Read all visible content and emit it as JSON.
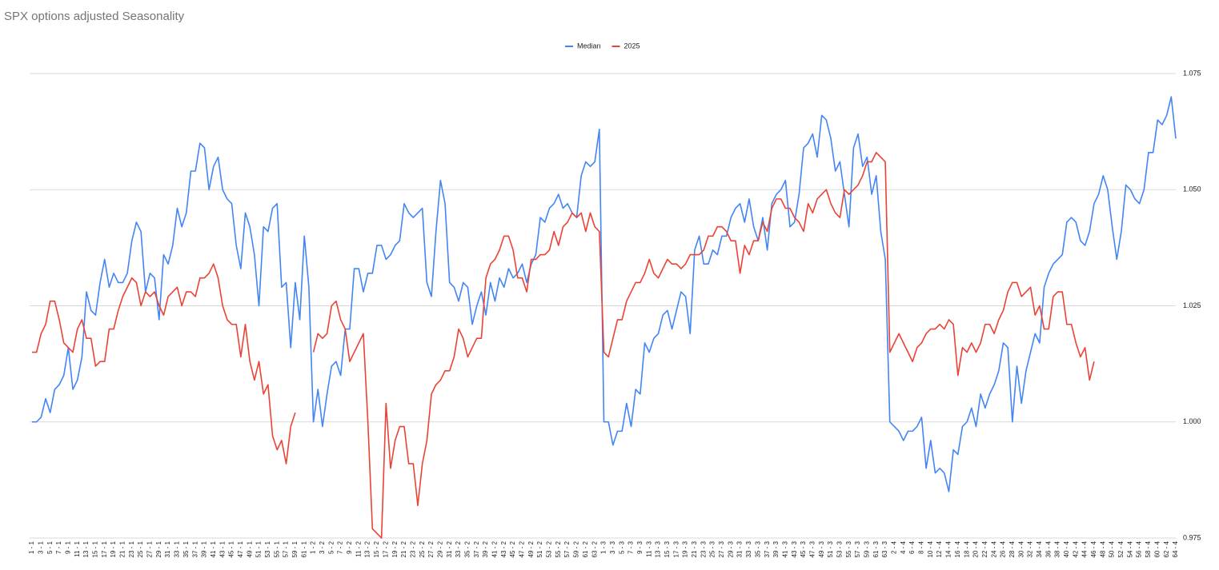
{
  "chart_data": {
    "type": "line",
    "title": "SPX options adjusted Seasonality",
    "categories": [
      "1 - 1",
      null,
      "3 - 1",
      null,
      "5 - 1",
      null,
      "7 - 1",
      null,
      "9 - 1",
      null,
      "11 - 1",
      null,
      "13 - 1",
      null,
      "15 - 1",
      null,
      "17 - 1",
      null,
      "19 - 1",
      null,
      "21 - 1",
      null,
      "23 - 1",
      null,
      "25 - 1",
      null,
      "27 - 1",
      null,
      "29 - 1",
      null,
      "31 - 1",
      null,
      "33 - 1",
      null,
      "35 - 1",
      null,
      "37 - 1",
      null,
      "39 - 1",
      null,
      "41 - 1",
      null,
      "43 - 1",
      null,
      "45 - 1",
      null,
      "47 - 1",
      null,
      "49 - 1",
      null,
      "51 - 1",
      null,
      "53 - 1",
      null,
      "55 - 1",
      null,
      "57 - 1",
      null,
      "59 - 1",
      null,
      "61 - 1",
      null,
      "1 - 2",
      null,
      "3 - 2",
      null,
      "5 - 2",
      null,
      "7 - 2",
      null,
      "9 - 2",
      null,
      "11 - 2",
      null,
      "13 - 2",
      null,
      "15 - 2",
      null,
      "17 - 2",
      null,
      "19 - 2",
      null,
      "21 - 2",
      null,
      "23 - 2",
      null,
      "25 - 2",
      null,
      "27 - 2",
      null,
      "29 - 2",
      null,
      "31 - 2",
      null,
      "33 - 2",
      null,
      "35 - 2",
      null,
      "37 - 2",
      null,
      "39 - 2",
      null,
      "41 - 2",
      null,
      "43 - 2",
      null,
      "45 - 2",
      null,
      "47 - 2",
      null,
      "49 - 2",
      null,
      "51 - 2",
      null,
      "53 - 2",
      null,
      "55 - 2",
      null,
      "57 - 2",
      null,
      "59 - 2",
      null,
      "61 - 2",
      null,
      "63 - 2",
      null,
      "1 - 3",
      null,
      "3 - 3",
      null,
      "5 - 3",
      null,
      "7 - 3",
      null,
      "9 - 3",
      null,
      "11 - 3",
      null,
      "13 - 3",
      null,
      "15 - 3",
      null,
      "17 - 3",
      null,
      "19 - 3",
      null,
      "21 - 3",
      null,
      "23 - 3",
      null,
      "25 - 3",
      null,
      "27 - 3",
      null,
      "29 - 3",
      null,
      "31 - 3",
      null,
      "33 - 3",
      null,
      "35 - 3",
      null,
      "37 - 3",
      null,
      "39 - 3",
      null,
      "41 - 3",
      null,
      "43 - 3",
      null,
      "45 - 3",
      null,
      "47 - 3",
      null,
      "49 - 3",
      null,
      "51 - 3",
      null,
      "53 - 3",
      null,
      "55 - 3",
      null,
      "57 - 3",
      null,
      "59 - 3",
      null,
      "61 - 3",
      null,
      "63 - 3",
      null,
      "2 - 4",
      null,
      "4 - 4",
      null,
      "6 - 4",
      null,
      "8 - 4",
      null,
      "10 - 4",
      null,
      "12 - 4",
      null,
      "14 - 4",
      null,
      "16 - 4",
      null,
      "18 - 4",
      null,
      "20 - 4",
      null,
      "22 - 4",
      null,
      "24 - 4",
      null,
      "26 - 4",
      null,
      "28 - 4",
      null,
      "30 - 4",
      null,
      "32 - 4",
      null,
      "34 - 4",
      null,
      "36 - 4",
      null,
      "38 - 4",
      null,
      "40 - 4",
      null,
      "42 - 4",
      null,
      "44 - 4",
      null,
      "46 - 4",
      null,
      "48 - 4",
      null,
      "50 - 4",
      null,
      "52 - 4",
      null,
      "54 - 4",
      null,
      "56 - 4",
      null,
      "58 - 4",
      null,
      "60 - 4",
      null,
      "62 - 4",
      null,
      "64 - 4"
    ],
    "series": [
      {
        "name": "Median",
        "color": "#4285f4",
        "values": [
          1.0,
          1.0,
          1.001,
          1.005,
          1.002,
          1.007,
          1.008,
          1.01,
          1.016,
          1.007,
          1.009,
          1.014,
          1.028,
          1.024,
          1.023,
          1.03,
          1.035,
          1.029,
          1.032,
          1.03,
          1.03,
          1.032,
          1.039,
          1.043,
          1.041,
          1.028,
          1.032,
          1.031,
          1.022,
          1.036,
          1.034,
          1.038,
          1.046,
          1.042,
          1.045,
          1.054,
          1.054,
          1.06,
          1.059,
          1.05,
          1.055,
          1.057,
          1.05,
          1.048,
          1.047,
          1.038,
          1.033,
          1.045,
          1.042,
          1.036,
          1.025,
          1.042,
          1.041,
          1.046,
          1.047,
          1.029,
          1.03,
          1.016,
          1.03,
          1.022,
          1.04,
          1.029,
          1.0,
          1.007,
          0.999,
          1.006,
          1.012,
          1.013,
          1.01,
          1.02,
          1.02,
          1.033,
          1.033,
          1.028,
          1.032,
          1.032,
          1.038,
          1.038,
          1.035,
          1.036,
          1.038,
          1.039,
          1.047,
          1.045,
          1.044,
          1.045,
          1.046,
          1.03,
          1.027,
          1.041,
          1.052,
          1.047,
          1.03,
          1.029,
          1.026,
          1.03,
          1.029,
          1.021,
          1.025,
          1.028,
          1.023,
          1.03,
          1.026,
          1.031,
          1.029,
          1.033,
          1.031,
          1.032,
          1.034,
          1.03,
          1.034,
          1.036,
          1.044,
          1.043,
          1.046,
          1.047,
          1.049,
          1.046,
          1.047,
          1.045,
          1.044,
          1.053,
          1.056,
          1.055,
          1.056,
          1.063,
          1.0,
          1.0,
          0.995,
          0.998,
          0.998,
          1.004,
          0.999,
          1.007,
          1.006,
          1.017,
          1.015,
          1.018,
          1.019,
          1.023,
          1.024,
          1.02,
          1.024,
          1.028,
          1.027,
          1.019,
          1.037,
          1.04,
          1.034,
          1.034,
          1.037,
          1.036,
          1.04,
          1.04,
          1.044,
          1.046,
          1.047,
          1.043,
          1.048,
          1.042,
          1.039,
          1.044,
          1.037,
          1.047,
          1.049,
          1.05,
          1.052,
          1.042,
          1.043,
          1.049,
          1.059,
          1.06,
          1.062,
          1.057,
          1.066,
          1.065,
          1.061,
          1.054,
          1.056,
          1.049,
          1.042,
          1.059,
          1.062,
          1.055,
          1.057,
          1.049,
          1.053,
          1.041,
          1.035,
          1.0,
          0.999,
          0.998,
          0.996,
          0.998,
          0.998,
          0.999,
          1.001,
          0.99,
          0.996,
          0.989,
          0.99,
          0.989,
          0.985,
          0.994,
          0.993,
          0.999,
          1.0,
          1.003,
          0.999,
          1.006,
          1.003,
          1.006,
          1.008,
          1.011,
          1.017,
          1.016,
          1.0,
          1.012,
          1.004,
          1.011,
          1.015,
          1.019,
          1.017,
          1.029,
          1.032,
          1.034,
          1.035,
          1.036,
          1.043,
          1.044,
          1.043,
          1.039,
          1.038,
          1.041,
          1.047,
          1.049,
          1.053,
          1.05,
          1.042,
          1.035,
          1.041,
          1.051,
          1.05,
          1.048,
          1.047,
          1.05,
          1.058,
          1.058,
          1.065,
          1.064,
          1.066,
          1.07,
          1.061
        ]
      },
      {
        "name": "2025",
        "color": "#ea4335",
        "values": [
          1.015,
          1.015,
          1.019,
          1.021,
          1.026,
          1.026,
          1.022,
          1.017,
          1.016,
          1.015,
          1.02,
          1.022,
          1.018,
          1.018,
          1.012,
          1.013,
          1.013,
          1.02,
          1.02,
          1.024,
          1.027,
          1.029,
          1.031,
          1.03,
          1.025,
          1.028,
          1.027,
          1.028,
          1.025,
          1.023,
          1.027,
          1.028,
          1.029,
          1.025,
          1.028,
          1.028,
          1.027,
          1.031,
          1.031,
          1.032,
          1.034,
          1.031,
          1.025,
          1.022,
          1.021,
          1.021,
          1.014,
          1.021,
          1.013,
          1.009,
          1.013,
          1.006,
          1.008,
          0.997,
          0.994,
          0.996,
          0.991,
          0.999,
          1.002,
          null,
          null,
          null,
          1.015,
          1.019,
          1.018,
          1.019,
          1.025,
          1.026,
          1.022,
          1.02,
          1.013,
          1.015,
          1.017,
          1.019,
          1.0,
          0.977,
          0.976,
          0.975,
          1.004,
          0.99,
          0.996,
          0.999,
          0.999,
          0.991,
          0.991,
          0.982,
          0.991,
          0.996,
          1.006,
          1.008,
          1.009,
          1.011,
          1.011,
          1.014,
          1.02,
          1.018,
          1.014,
          1.016,
          1.018,
          1.018,
          1.031,
          1.034,
          1.035,
          1.037,
          1.04,
          1.04,
          1.037,
          1.031,
          1.031,
          1.028,
          1.035,
          1.035,
          1.036,
          1.036,
          1.037,
          1.041,
          1.038,
          1.042,
          1.043,
          1.045,
          1.044,
          1.045,
          1.041,
          1.045,
          1.042,
          1.041,
          1.015,
          1.014,
          1.018,
          1.022,
          1.022,
          1.026,
          1.028,
          1.03,
          1.03,
          1.032,
          1.035,
          1.032,
          1.031,
          1.033,
          1.035,
          1.034,
          1.034,
          1.033,
          1.034,
          1.036,
          1.036,
          1.036,
          1.037,
          1.04,
          1.04,
          1.042,
          1.042,
          1.041,
          1.039,
          1.039,
          1.032,
          1.038,
          1.036,
          1.039,
          1.039,
          1.043,
          1.041,
          1.046,
          1.048,
          1.048,
          1.046,
          1.046,
          1.044,
          1.043,
          1.041,
          1.047,
          1.045,
          1.048,
          1.049,
          1.05,
          1.047,
          1.045,
          1.044,
          1.05,
          1.049,
          1.05,
          1.051,
          1.053,
          1.056,
          1.056,
          1.058,
          1.057,
          1.056,
          1.015,
          1.017,
          1.019,
          1.017,
          1.015,
          1.013,
          1.016,
          1.017,
          1.019,
          1.02,
          1.02,
          1.021,
          1.02,
          1.022,
          1.021,
          1.01,
          1.016,
          1.015,
          1.017,
          1.015,
          1.017,
          1.021,
          1.021,
          1.019,
          1.022,
          1.024,
          1.028,
          1.03,
          1.03,
          1.027,
          1.028,
          1.029,
          1.023,
          1.025,
          1.02,
          1.02,
          1.027,
          1.028,
          1.028,
          1.021,
          1.021,
          1.017,
          1.014,
          1.016,
          1.009,
          1.013,
          null,
          null,
          null,
          null,
          null,
          null,
          null,
          null,
          null,
          null,
          null,
          null,
          null,
          null,
          null,
          null,
          null,
          null
        ]
      }
    ],
    "ylim": [
      0.975,
      1.075
    ],
    "yticks": [
      0.975,
      {
        "value": 1,
        "label": "1.000"
      },
      1.025,
      {
        "value": 1.05,
        "label": "1.050"
      },
      1.075
    ],
    "grid": true,
    "legend": "top"
  }
}
